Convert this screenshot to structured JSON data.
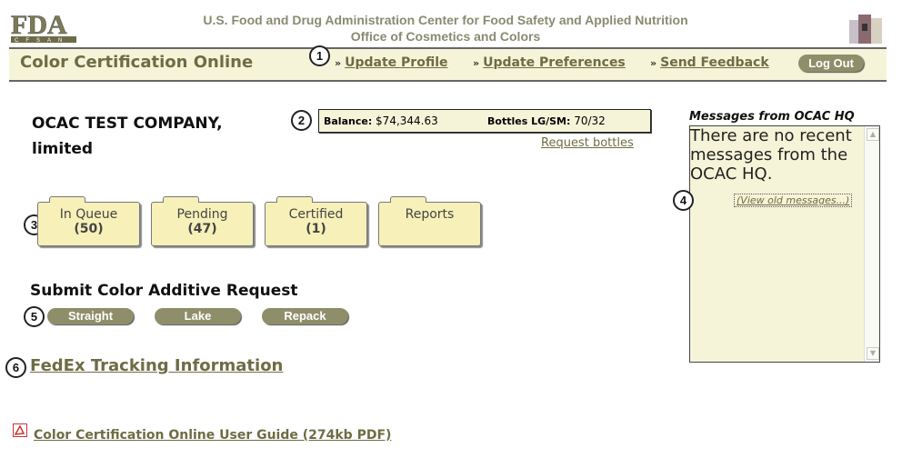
{
  "header": {
    "logo_text": "FDA CFSAN",
    "line1": "U.S. Food and Drug Administration Center for Food Safety and Applied Nutrition",
    "line2": "Office of Cosmetics and Colors",
    "app_title": "Color Certification Online"
  },
  "nav": {
    "items": [
      {
        "label": "Update Profile"
      },
      {
        "label": "Update Preferences"
      },
      {
        "label": "Send Feedback"
      }
    ],
    "logout_label": "Log Out",
    "separator": "»"
  },
  "callouts": [
    "1",
    "2",
    "3",
    "4",
    "5",
    "6"
  ],
  "company": {
    "line1": "OCAC TEST COMPANY,",
    "line2": "limited"
  },
  "account": {
    "balance_label": "Balance:",
    "balance_value": "$74,344.63",
    "bottles_label": "Bottles LG/SM:",
    "bottles_value": "70/32",
    "request_bottles": "Request bottles"
  },
  "folders": [
    {
      "label": "In Queue",
      "count": "(50)"
    },
    {
      "label": "Pending",
      "count": "(47)"
    },
    {
      "label": "Certified",
      "count": "(1)"
    },
    {
      "label": "Reports",
      "count": ""
    }
  ],
  "submit": {
    "title": "Submit Color Additive Request",
    "buttons": [
      "Straight",
      "Lake",
      "Repack"
    ]
  },
  "fedex_link": "FedEx Tracking Information",
  "guide_link": "Color Certification Online User Guide (274kb PDF)",
  "messages": {
    "title": "Messages from OCAC HQ",
    "body": "There are no recent messages from the OCAC HQ.",
    "view_old": "(View old messages...)"
  },
  "colors": {
    "accent": "#6e6c44",
    "band": "#f6f4d8",
    "button": "#8f8e6a",
    "folder": "#f7f0b8"
  }
}
